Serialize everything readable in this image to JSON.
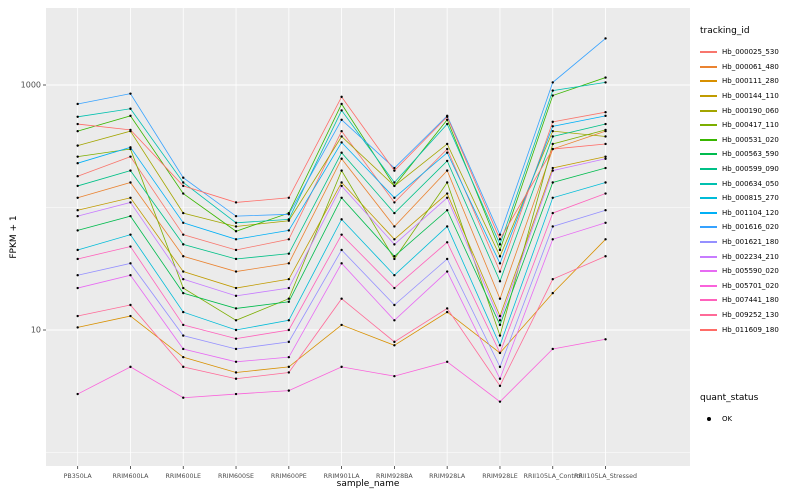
{
  "figure": {
    "background": "#FFFFFF"
  },
  "chart_data": {
    "type": "line",
    "title": "",
    "xlabel": "sample_name",
    "ylabel": "FPKM + 1",
    "y_scale": "log10",
    "ylim": [
      0.8,
      4500
    ],
    "y_ticks": [
      10,
      1000
    ],
    "y_tick_labels": [
      "10",
      "1000"
    ],
    "y_minor_gridlines": [
      1,
      100
    ],
    "grid": true,
    "legend_position": "right",
    "panel_bg": "#EBEBEB",
    "grid_color": "#FFFFFF",
    "tick_label_color": "#4D4D4D",
    "point_color": "#000000",
    "legend_title": "tracking_id",
    "legend2_title": "quant_status",
    "quant_status": {
      "label": "OK",
      "color": "#000000"
    },
    "categories": [
      "PB350LA",
      "RRIM600LA",
      "RRIM600LE",
      "RRIM600SE",
      "RRIM600PE",
      "RRIM901LA",
      "RRIM928BA",
      "RRIM928LA",
      "RRIM928LE",
      "RRII105LA_Control",
      "RRII105LA_Stressed"
    ],
    "series": [
      {
        "name": "Hb_000025_530",
        "color": "#F8766D",
        "values": [
          180,
          260,
          60,
          45,
          55,
          420,
          110,
          300,
          30,
          500,
          600
        ]
      },
      {
        "name": "Hb_000061_480",
        "color": "#EA8331",
        "values": [
          120,
          160,
          40,
          30,
          35,
          250,
          70,
          200,
          18,
          300,
          420
        ]
      },
      {
        "name": "Hb_000111_280",
        "color": "#D89000",
        "values": [
          10.5,
          13,
          6,
          4.5,
          5,
          11,
          7.5,
          14,
          6.5,
          20,
          55
        ]
      },
      {
        "name": "Hb_000144_110",
        "color": "#C09B00",
        "values": [
          95,
          120,
          30,
          22,
          26,
          160,
          55,
          130,
          13,
          210,
          260
        ]
      },
      {
        "name": "Hb_000190_060",
        "color": "#A3A500",
        "values": [
          320,
          420,
          90,
          70,
          78,
          380,
          150,
          330,
          40,
          420,
          380
        ]
      },
      {
        "name": "Hb_000417_110",
        "color": "#7CAE00",
        "values": [
          260,
          300,
          22,
          12,
          18,
          200,
          38,
          160,
          9,
          330,
          430
        ]
      },
      {
        "name": "Hb_000531_020",
        "color": "#39B600",
        "values": [
          420,
          560,
          130,
          64,
          90,
          700,
          150,
          520,
          45,
          820,
          1150
        ]
      },
      {
        "name": "Hb_000563_590",
        "color": "#00BB4E",
        "values": [
          65,
          85,
          20,
          15,
          17,
          120,
          40,
          95,
          11,
          160,
          210
        ]
      },
      {
        "name": "Hb_000599_090",
        "color": "#00C087",
        "values": [
          150,
          200,
          50,
          38,
          42,
          280,
          90,
          240,
          25,
          380,
          480
        ]
      },
      {
        "name": "Hb_000634_050",
        "color": "#00C0AF",
        "values": [
          550,
          640,
          160,
          75,
          80,
          620,
          160,
          480,
          50,
          900,
          1050
        ]
      },
      {
        "name": "Hb_000815_270",
        "color": "#00BCD8",
        "values": [
          45,
          60,
          14,
          10,
          12,
          80,
          28,
          70,
          7.5,
          120,
          160
        ]
      },
      {
        "name": "Hb_001104_120",
        "color": "#00B0F6",
        "values": [
          230,
          310,
          75,
          55,
          65,
          340,
          120,
          280,
          35,
          460,
          560
        ]
      },
      {
        "name": "Hb_001616_020",
        "color": "#35A2FF",
        "values": [
          700,
          850,
          175,
          85,
          88,
          520,
          210,
          560,
          60,
          1050,
          2400
        ]
      },
      {
        "name": "Hb_001621_180",
        "color": "#9590FF",
        "values": [
          28,
          35,
          9,
          7,
          8,
          45,
          16,
          38,
          5,
          70,
          95
        ]
      },
      {
        "name": "Hb_002234_210",
        "color": "#C77CFF",
        "values": [
          85,
          110,
          26,
          19,
          22,
          150,
          50,
          120,
          12,
          200,
          250
        ]
      },
      {
        "name": "Hb_005590_020",
        "color": "#E76BF3",
        "values": [
          22,
          28,
          7,
          5.5,
          6,
          35,
          12,
          30,
          4,
          55,
          75
        ]
      },
      {
        "name": "Hb_005701_020",
        "color": "#FA62DB",
        "values": [
          3,
          5,
          2.8,
          3,
          3.2,
          5,
          4.2,
          5.5,
          2.6,
          7,
          8.4
        ]
      },
      {
        "name": "Hb_007441_180",
        "color": "#FF62BC",
        "values": [
          38,
          48,
          11,
          8.5,
          10,
          60,
          22,
          52,
          6.5,
          90,
          130
        ]
      },
      {
        "name": "Hb_009252_130",
        "color": "#FF6A98",
        "values": [
          13,
          16,
          5,
          4,
          4.5,
          18,
          8,
          15,
          3.5,
          26,
          40
        ]
      },
      {
        "name": "Hb_011609_180",
        "color": "#FF6C67",
        "values": [
          480,
          430,
          150,
          110,
          120,
          800,
          200,
          550,
          55,
          300,
          330
        ]
      }
    ]
  }
}
